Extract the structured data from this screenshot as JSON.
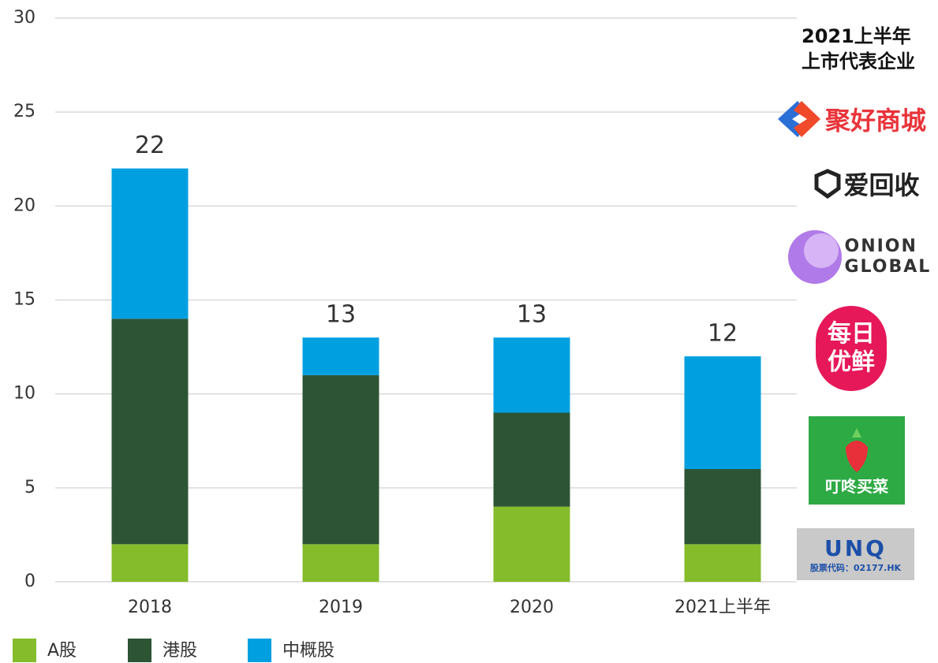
{
  "chart_data": {
    "type": "stacked_bar",
    "categories": [
      "2018",
      "2019",
      "2020",
      "2021上半年"
    ],
    "series": [
      {
        "name": "A股",
        "color": "#84bc2b",
        "values": [
          2,
          2,
          4,
          2
        ]
      },
      {
        "name": "港股",
        "color": "#2d5535",
        "values": [
          12,
          9,
          5,
          4
        ]
      },
      {
        "name": "中概股",
        "color": "#00a0e0",
        "values": [
          8,
          2,
          4,
          6
        ]
      }
    ],
    "totals": [
      22,
      13,
      13,
      12
    ],
    "ylim": [
      0,
      30
    ],
    "yticks": [
      0,
      5,
      10,
      15,
      20,
      25,
      30
    ],
    "grid": true,
    "legend": "bottom"
  },
  "side_panel": {
    "title": "2021上半年上市代表企业",
    "companies": [
      "聚好商城",
      "爱回收",
      "ONION GLOBAL",
      "每日优鲜",
      "叮咚买菜",
      "UNQ",
      "股票代码：02177.HK"
    ]
  }
}
